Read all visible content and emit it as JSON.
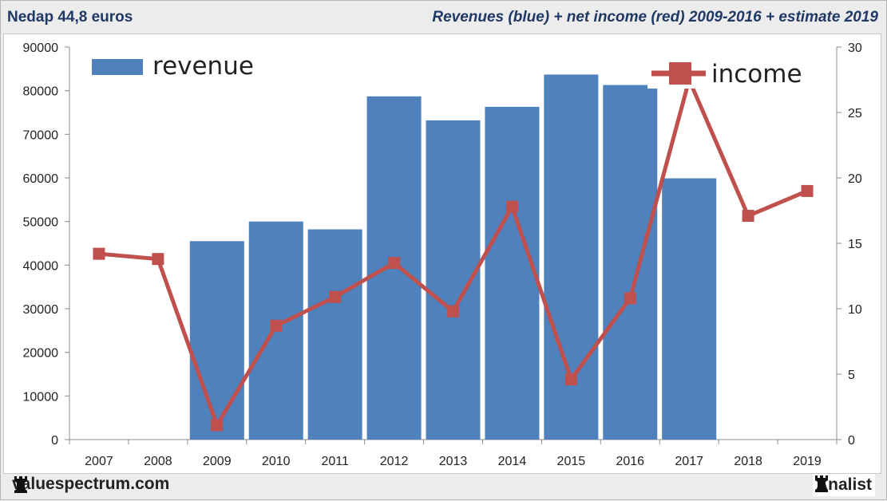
{
  "header": {
    "left_title": "Nedap 44,8 euros",
    "right_title": "Revenues (blue) + net income (red) 2009-2016 + estimate 2019"
  },
  "footer": {
    "left_text": "valuespectrum.com",
    "right_text": "Analist"
  },
  "colors": {
    "bar": "#4f81bd",
    "line": "#c0504d",
    "title": "#1f3864"
  },
  "chart_data": {
    "type": "bar+line",
    "title": "Revenues (blue) + net income (red) 2009-2016 + estimate 2019",
    "categories": [
      "2007",
      "2008",
      "2009",
      "2010",
      "2011",
      "2012",
      "2013",
      "2014",
      "2015",
      "2016",
      "2017",
      "2018",
      "2019"
    ],
    "series": [
      {
        "name": "revenue",
        "type": "bar",
        "axis": "left",
        "values": [
          null,
          null,
          45500,
          50000,
          48200,
          78700,
          73200,
          76300,
          83700,
          81300,
          59900,
          null,
          null
        ]
      },
      {
        "name": "income",
        "type": "line",
        "axis": "right",
        "values": [
          14.2,
          13.8,
          1.1,
          8.7,
          10.9,
          13.5,
          9.8,
          17.8,
          4.6,
          10.8,
          27.5,
          17.1,
          19.0
        ]
      }
    ],
    "left_axis": {
      "min": 0,
      "max": 90000,
      "ticks": [
        "0",
        "10000",
        "20000",
        "30000",
        "40000",
        "50000",
        "60000",
        "70000",
        "80000",
        "90000"
      ]
    },
    "right_axis": {
      "min": 0,
      "max": 30,
      "ticks": [
        "0",
        "5",
        "10",
        "15",
        "20",
        "25",
        "30"
      ]
    },
    "legend": {
      "revenue_label": "revenue",
      "income_label": "income"
    }
  }
}
